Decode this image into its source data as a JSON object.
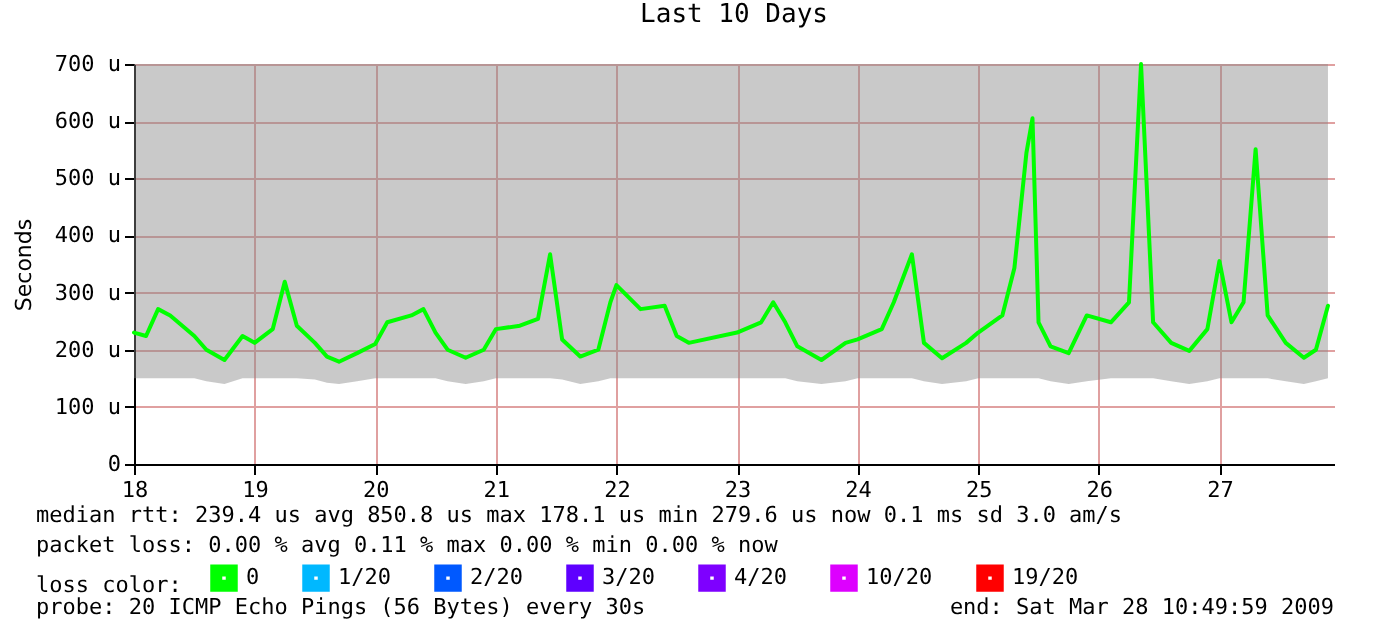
{
  "chart_data": {
    "type": "line",
    "title": "Last 10 Days",
    "ylabel": "Seconds",
    "xlim": [
      18,
      27.95
    ],
    "xticks": [
      18,
      19,
      20,
      21,
      22,
      23,
      24,
      25,
      26,
      27
    ],
    "ylim": [
      0,
      700
    ],
    "yticks": [
      0,
      {
        "value": 100,
        "label": "100 u"
      },
      {
        "value": 200,
        "label": "200 u"
      },
      {
        "value": 300,
        "label": "300 u"
      },
      {
        "value": 400,
        "label": "400 u"
      },
      {
        "value": 500,
        "label": "500 u"
      },
      {
        "value": 600,
        "label": "600 u"
      },
      {
        "value": 700,
        "label": "700 u"
      }
    ],
    "grid": true,
    "legend": "bottom",
    "legend_title": "loss color:",
    "x": [
      18.0,
      18.1,
      18.2,
      18.3,
      18.4,
      18.5,
      18.6,
      18.75,
      18.9,
      19.0,
      19.15,
      19.25,
      19.35,
      19.5,
      19.6,
      19.7,
      19.85,
      20.0,
      20.1,
      20.3,
      20.4,
      20.5,
      20.6,
      20.75,
      20.9,
      21.0,
      21.2,
      21.35,
      21.45,
      21.55,
      21.7,
      21.85,
      21.95,
      22.0,
      22.2,
      22.4,
      22.5,
      22.6,
      23.0,
      23.2,
      23.3,
      23.4,
      23.5,
      23.7,
      23.9,
      24.0,
      24.2,
      24.3,
      24.45,
      24.55,
      24.7,
      24.9,
      25.0,
      25.2,
      25.3,
      25.4,
      25.45,
      25.5,
      25.6,
      25.75,
      25.9,
      26.1,
      26.25,
      26.35,
      26.45,
      26.6,
      26.75,
      26.9,
      27.0,
      27.1,
      27.2,
      27.3,
      27.4,
      27.55,
      27.7,
      27.8,
      27.9
    ],
    "series": [
      {
        "name": "0",
        "color": "#00ff00",
        "values": [
          230,
          224,
          271,
          260,
          242,
          224,
          200,
          182,
          224,
          212,
          236,
          319,
          242,
          212,
          188,
          179,
          194,
          210,
          248,
          260,
          271,
          230,
          200,
          186,
          200,
          236,
          242,
          254,
          367,
          218,
          188,
          200,
          283,
          313,
          271,
          277,
          224,
          212,
          230,
          248,
          283,
          248,
          206,
          182,
          212,
          218,
          236,
          283,
          367,
          212,
          185,
          212,
          230,
          260,
          343,
          545,
          605,
          248,
          206,
          194,
          260,
          248,
          283,
          700,
          248,
          212,
          198,
          236,
          355,
          248,
          283,
          551,
          260,
          212,
          186,
          200,
          277
        ],
        "lower": [
          150,
          150,
          150,
          150,
          150,
          150,
          145,
          140,
          150,
          150,
          150,
          150,
          150,
          148,
          142,
          140,
          145,
          150,
          150,
          150,
          150,
          150,
          145,
          140,
          145,
          150,
          150,
          150,
          150,
          148,
          140,
          145,
          150,
          150,
          150,
          150,
          150,
          150,
          150,
          150,
          150,
          150,
          145,
          140,
          145,
          150,
          150,
          150,
          150,
          145,
          140,
          145,
          150,
          150,
          150,
          150,
          150,
          150,
          145,
          140,
          145,
          150,
          150,
          150,
          150,
          145,
          140,
          145,
          150,
          150,
          150,
          150,
          150,
          145,
          140,
          145,
          150
        ],
        "upper": [
          700,
          700,
          700,
          700,
          700,
          700,
          700,
          700,
          700,
          700,
          700,
          700,
          700,
          700,
          700,
          700,
          700,
          700,
          700,
          700,
          700,
          700,
          700,
          700,
          700,
          700,
          700,
          700,
          700,
          700,
          700,
          700,
          700,
          700,
          700,
          700,
          700,
          700,
          700,
          700,
          700,
          700,
          700,
          700,
          700,
          700,
          700,
          700,
          700,
          700,
          700,
          700,
          700,
          700,
          700,
          700,
          700,
          700,
          700,
          700,
          700,
          700,
          700,
          700,
          700,
          700,
          700,
          700,
          700,
          700,
          700,
          700,
          700,
          700,
          700,
          700,
          700
        ]
      },
      {
        "name": "1/20",
        "color": "#00b8ff",
        "values": [
          null,
          null,
          null,
          null,
          null,
          null,
          null,
          null,
          null,
          null,
          null,
          null,
          null,
          null,
          null,
          null,
          null,
          null,
          null,
          null,
          null,
          null,
          null,
          null,
          null,
          null,
          null,
          null,
          null,
          null,
          null,
          null,
          null,
          null,
          null,
          null,
          null,
          null,
          null,
          null,
          null,
          null,
          null,
          null,
          null,
          null,
          null,
          null,
          null,
          null,
          null,
          null,
          null,
          null,
          null,
          null,
          null,
          null,
          null,
          null,
          null,
          null,
          null,
          null,
          null,
          null,
          null,
          null,
          null,
          null,
          null,
          null,
          null,
          null,
          null,
          null,
          null
        ]
      },
      {
        "name": "2/20",
        "color": "#0059ff",
        "values": [
          null,
          null,
          null,
          null,
          null,
          null,
          null,
          null,
          null,
          null,
          null,
          null,
          null,
          null,
          null,
          null,
          null,
          null,
          null,
          null,
          null,
          null,
          null,
          null,
          null,
          null,
          null,
          null,
          null,
          null,
          null,
          null,
          null,
          null,
          null,
          null,
          null,
          null,
          null,
          null,
          null,
          null,
          null,
          null,
          null,
          null,
          null,
          null,
          null,
          null,
          null,
          null,
          null,
          null,
          null,
          null,
          null,
          null,
          null,
          null,
          null,
          null,
          null,
          null,
          null,
          null,
          null,
          null,
          null,
          null,
          null,
          null,
          null,
          null,
          null,
          null,
          null
        ]
      },
      {
        "name": "3/20",
        "color": "#5e00ff",
        "values": [
          null,
          null,
          null,
          null,
          null,
          null,
          null,
          null,
          null,
          null,
          null,
          null,
          null,
          null,
          null,
          null,
          null,
          null,
          null,
          null,
          null,
          null,
          null,
          null,
          null,
          null,
          null,
          null,
          null,
          null,
          null,
          null,
          null,
          null,
          null,
          null,
          null,
          null,
          null,
          null,
          null,
          null,
          null,
          null,
          null,
          null,
          null,
          null,
          null,
          null,
          null,
          null,
          null,
          null,
          null,
          null,
          null,
          null,
          null,
          null,
          null,
          null,
          null,
          null,
          null,
          null,
          null,
          null,
          null,
          null,
          null,
          null,
          null,
          null,
          null,
          null,
          null
        ]
      },
      {
        "name": "4/20",
        "color": "#7e00ff",
        "values": [
          null,
          null,
          null,
          null,
          null,
          null,
          null,
          null,
          null,
          null,
          null,
          null,
          null,
          null,
          null,
          null,
          null,
          null,
          null,
          null,
          null,
          null,
          null,
          null,
          null,
          null,
          null,
          null,
          null,
          null,
          null,
          null,
          null,
          null,
          null,
          null,
          null,
          null,
          null,
          null,
          null,
          null,
          null,
          null,
          null,
          null,
          null,
          null,
          null,
          null,
          null,
          null,
          null,
          null,
          null,
          null,
          null,
          null,
          null,
          null,
          null,
          null,
          null,
          null,
          null,
          null,
          null,
          null,
          null,
          null,
          null,
          null,
          null,
          null,
          null,
          null,
          null
        ]
      },
      {
        "name": "10/20",
        "color": "#dd00ff",
        "values": [
          null,
          null,
          null,
          null,
          null,
          null,
          null,
          null,
          null,
          null,
          null,
          null,
          null,
          null,
          null,
          null,
          null,
          null,
          null,
          null,
          null,
          null,
          null,
          null,
          null,
          null,
          null,
          null,
          null,
          null,
          null,
          null,
          null,
          null,
          null,
          null,
          null,
          null,
          null,
          null,
          null,
          null,
          null,
          null,
          null,
          null,
          null,
          null,
          null,
          null,
          null,
          null,
          null,
          null,
          null,
          null,
          null,
          null,
          null,
          null,
          null,
          null,
          null,
          null,
          null,
          null,
          null,
          null,
          null,
          null,
          null,
          null,
          null,
          null,
          null,
          null,
          null
        ]
      },
      {
        "name": "19/20",
        "color": "#ff0000",
        "values": [
          null,
          null,
          null,
          null,
          null,
          null,
          null,
          null,
          null,
          null,
          null,
          null,
          null,
          null,
          null,
          null,
          null,
          null,
          null,
          null,
          null,
          null,
          null,
          null,
          null,
          null,
          null,
          null,
          null,
          null,
          null,
          null,
          null,
          null,
          null,
          null,
          null,
          null,
          null,
          null,
          null,
          null,
          null,
          null,
          null,
          null,
          null,
          null,
          null,
          null,
          null,
          null,
          null,
          null,
          null,
          null,
          null,
          null,
          null,
          null,
          null,
          null,
          null,
          null,
          null,
          null,
          null,
          null,
          null,
          null,
          null,
          null,
          null,
          null,
          null,
          null,
          null
        ]
      }
    ],
    "annotations": [
      "median rtt:  239.4 us avg  850.8 us max  178.1 us min  279.6 us now  0.1 ms sd  3.0   am/s",
      "packet loss: 0.00 % avg  0.11 % max  0.00 % min  0.00 % now",
      "probe:       20 ICMP Echo Pings (56 Bytes) every 30s",
      "end: Sat Mar 28 10:49:59 2009"
    ]
  }
}
